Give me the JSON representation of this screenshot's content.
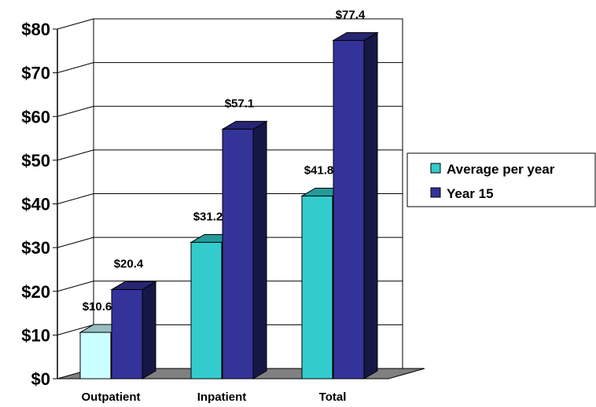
{
  "chart_data": {
    "type": "bar",
    "categories": [
      "Outpatient",
      "Inpatient",
      "Total"
    ],
    "series": [
      {
        "name": "Average per year",
        "values": [
          10.6,
          31.2,
          41.8
        ]
      },
      {
        "name": "Year 15",
        "values": [
          20.4,
          57.1,
          77.4
        ]
      }
    ],
    "data_labels": [
      [
        "$10.6",
        "$31.2",
        "$41.8"
      ],
      [
        "$20.4",
        "$57.1",
        "$77.4"
      ]
    ],
    "y_ticks": [
      "$0",
      "$10",
      "$20",
      "$30",
      "$40",
      "$50",
      "$60",
      "$70",
      "$80"
    ],
    "ylim": [
      0,
      80
    ],
    "grid": true,
    "three_d": true,
    "legend_position": "right",
    "colors": {
      "average_per_year": "#33cccc",
      "average_per_year_outpatient": "#ccffff",
      "year_15": "#333399",
      "floor": "#808080"
    }
  }
}
